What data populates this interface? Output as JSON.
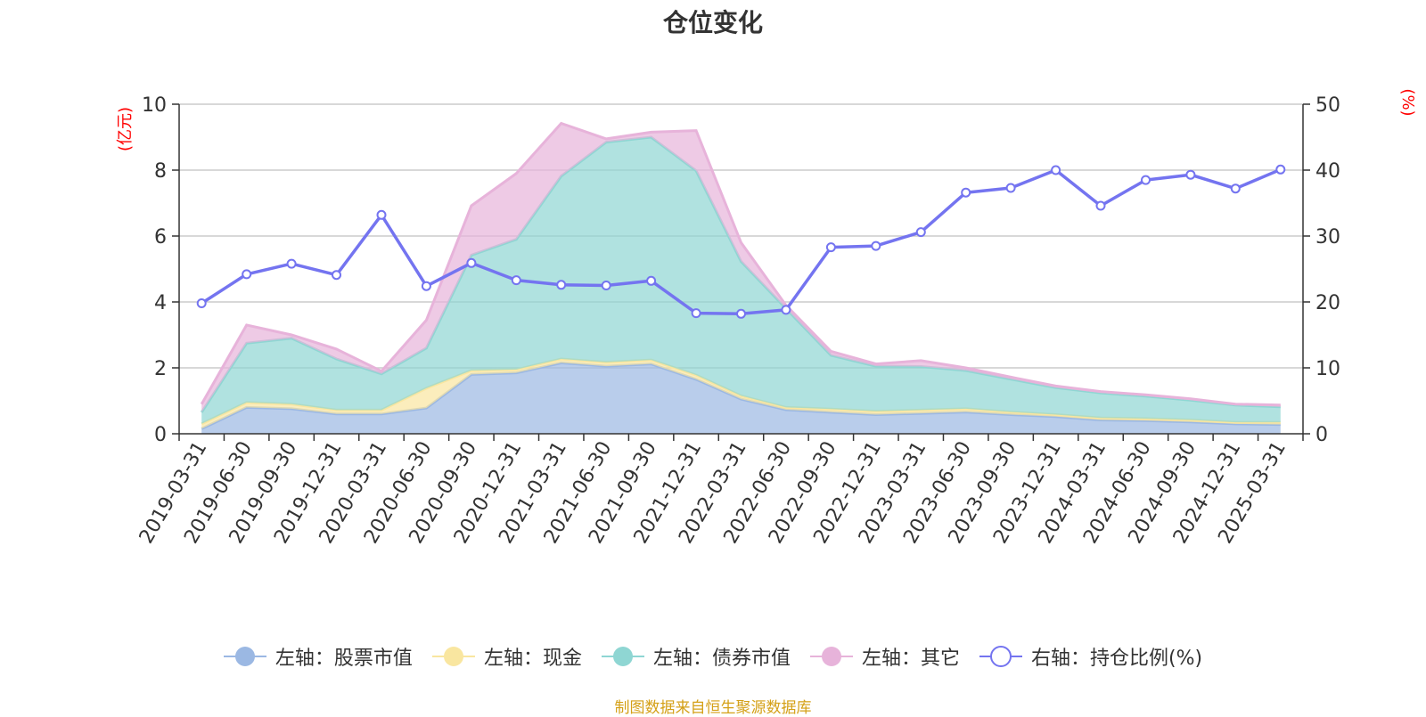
{
  "source_text": "制图数据来自恒生聚源数据库",
  "colors": {
    "stock": "#9BB8E3",
    "cash": "#F9E6A0",
    "bond": "#8FD6D3",
    "other": "#E7B3DA",
    "ratio": "#7474F0",
    "axis_unit": "#FF0000",
    "source": "#D4A017"
  },
  "chart_data": {
    "type": "area",
    "title": "仓位变化",
    "left_axis_label": "(亿元)",
    "right_axis_label": "(%)",
    "left_ylim": [
      0,
      10
    ],
    "right_ylim": [
      0,
      50
    ],
    "left_ticks": [
      "0",
      "2",
      "4",
      "6",
      "8",
      "10"
    ],
    "right_ticks": [
      "0",
      "10",
      "20",
      "30",
      "40",
      "50"
    ],
    "categories": [
      "2019-03-31",
      "2019-06-30",
      "2019-09-30",
      "2019-12-31",
      "2020-03-31",
      "2020-06-30",
      "2020-09-30",
      "2020-12-31",
      "2021-03-31",
      "2021-06-30",
      "2021-09-30",
      "2021-12-31",
      "2022-03-31",
      "2022-06-30",
      "2022-09-30",
      "2022-12-31",
      "2023-03-31",
      "2023-06-30",
      "2023-09-30",
      "2023-12-31",
      "2024-03-31",
      "2024-06-30",
      "2024-09-30",
      "2024-12-31",
      "2025-03-31"
    ],
    "stacked_series": [
      {
        "name": "左轴：股票市值",
        "values": [
          0.15,
          0.8,
          0.76,
          0.6,
          0.6,
          0.78,
          1.8,
          1.85,
          2.15,
          2.05,
          2.12,
          1.65,
          1.05,
          0.73,
          0.65,
          0.58,
          0.62,
          0.66,
          0.58,
          0.52,
          0.42,
          0.4,
          0.36,
          0.3,
          0.28
        ]
      },
      {
        "name": "左轴：现金",
        "values": [
          0.15,
          0.15,
          0.14,
          0.12,
          0.12,
          0.6,
          0.12,
          0.1,
          0.12,
          0.12,
          0.12,
          0.13,
          0.1,
          0.07,
          0.1,
          0.1,
          0.1,
          0.1,
          0.08,
          0.06,
          0.06,
          0.06,
          0.06,
          0.05,
          0.07
        ]
      },
      {
        "name": "左轴：债券市值",
        "values": [
          0.35,
          1.8,
          2.0,
          1.55,
          1.1,
          1.22,
          3.5,
          3.95,
          5.55,
          6.68,
          6.76,
          6.2,
          4.08,
          3.0,
          1.63,
          1.37,
          1.32,
          1.16,
          1.0,
          0.82,
          0.76,
          0.68,
          0.6,
          0.52,
          0.47
        ]
      },
      {
        "name": "左轴：其它",
        "values": [
          0.25,
          0.55,
          0.1,
          0.3,
          0.08,
          0.85,
          1.5,
          2.0,
          1.6,
          0.1,
          0.15,
          1.22,
          0.57,
          0.1,
          0.12,
          0.07,
          0.18,
          0.08,
          0.06,
          0.05,
          0.04,
          0.04,
          0.04,
          0.03,
          0.05
        ]
      }
    ],
    "line_series": {
      "name": "右轴：持仓比例(%)",
      "values": [
        19.8,
        24.2,
        25.8,
        24.1,
        33.2,
        22.4,
        25.9,
        23.3,
        22.6,
        22.5,
        23.2,
        18.3,
        18.2,
        18.8,
        28.3,
        28.5,
        30.6,
        36.6,
        37.3,
        40.0,
        34.6,
        38.5,
        39.3,
        37.2,
        40.1
      ]
    }
  }
}
